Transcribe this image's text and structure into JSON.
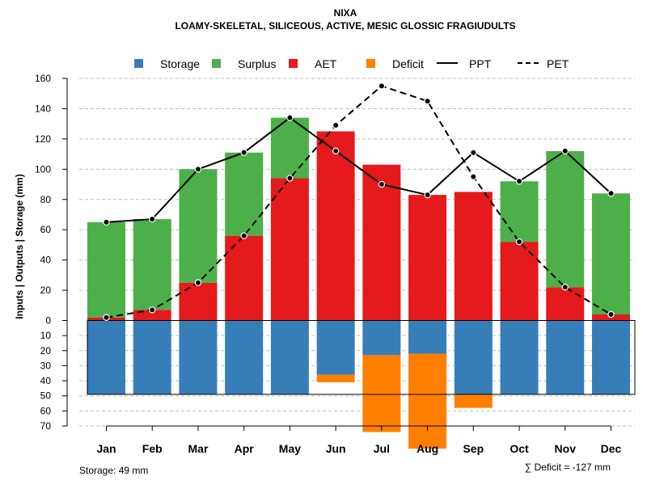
{
  "chart_data": {
    "type": "bar",
    "title": "NIXA",
    "subtitle": "LOAMY-SKELETAL, SILICEOUS, ACTIVE, MESIC GLOSSIC FRAGIUDULTS",
    "ylabel": "Inputs | Outputs | Storage    (mm)",
    "categories": [
      "Jan",
      "Feb",
      "Mar",
      "Apr",
      "May",
      "Jun",
      "Jul",
      "Aug",
      "Sep",
      "Oct",
      "Nov",
      "Dec"
    ],
    "upper_ylim": [
      0,
      160
    ],
    "upper_ticks": [
      "160",
      "140",
      "120",
      "100",
      "80",
      "60",
      "40",
      "20",
      "0"
    ],
    "lower_ylim": [
      0,
      70
    ],
    "lower_ticks": [
      "10",
      "20",
      "30",
      "40",
      "50",
      "60",
      "70"
    ],
    "series": [
      {
        "name": "Storage",
        "color": "#377EB8",
        "values": [
          49,
          49,
          49,
          49,
          49,
          36,
          23,
          22,
          49,
          49,
          49,
          49
        ]
      },
      {
        "name": "Surplus",
        "color": "#4DAF4A",
        "values": [
          63,
          60,
          75,
          55,
          40,
          0,
          0,
          0,
          0,
          40,
          90,
          80
        ]
      },
      {
        "name": "AET",
        "color": "#E41A1C",
        "values": [
          2,
          7,
          25,
          56,
          94,
          125,
          103,
          83,
          85,
          52,
          22,
          4
        ]
      },
      {
        "name": "Deficit",
        "color": "#FF7F00",
        "values": [
          0,
          0,
          0,
          0,
          0,
          5,
          51,
          63,
          9,
          0,
          0,
          0
        ]
      },
      {
        "name": "PPT",
        "style": "solid",
        "values": [
          65,
          67,
          100,
          111,
          134,
          112,
          90,
          83,
          111,
          92,
          112,
          84
        ]
      },
      {
        "name": "PET",
        "style": "dashed",
        "values": [
          2,
          7,
          25,
          56,
          94,
          129,
          155,
          145,
          95,
          52,
          22,
          4
        ]
      }
    ],
    "storage_capacity": 49,
    "footer_storage": "Storage: 49 mm",
    "footer_deficit": "∑ Deficit = -127 mm"
  }
}
